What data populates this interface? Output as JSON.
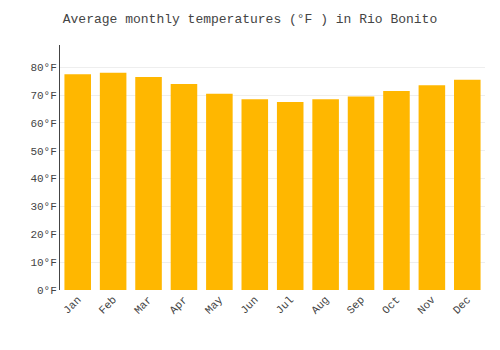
{
  "chart_data": {
    "type": "bar",
    "title": "Average monthly temperatures (°F ) in Rio Bonito",
    "categories": [
      "Jan",
      "Feb",
      "Mar",
      "Apr",
      "May",
      "Jun",
      "Jul",
      "Aug",
      "Sep",
      "Oct",
      "Nov",
      "Dec"
    ],
    "values": [
      77.5,
      78.0,
      76.5,
      74.0,
      70.5,
      68.5,
      67.5,
      68.5,
      69.5,
      71.5,
      73.5,
      75.5
    ],
    "color": "#FFB700",
    "ylim": [
      0,
      88
    ],
    "yticks": [
      {
        "value": 0,
        "label": "0°F"
      },
      {
        "value": 10,
        "label": "10°F"
      },
      {
        "value": 20,
        "label": "20°F"
      },
      {
        "value": 30,
        "label": "30°F"
      },
      {
        "value": 40,
        "label": "40°F"
      },
      {
        "value": 50,
        "label": "50°F"
      },
      {
        "value": 60,
        "label": "60°F"
      },
      {
        "value": 70,
        "label": "70°F"
      },
      {
        "value": 80,
        "label": "80°F"
      }
    ],
    "grid": true
  }
}
